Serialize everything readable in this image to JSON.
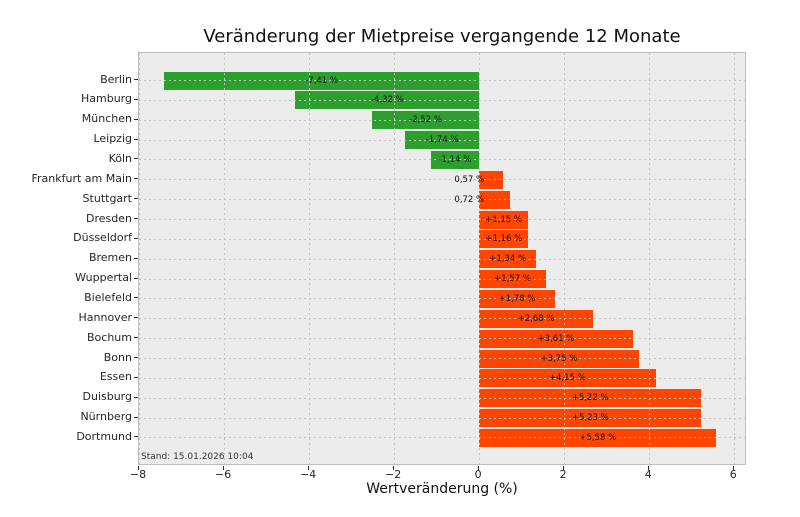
{
  "figure": {
    "title": "Veränderung der Mietpreise vergangende 12 Monate",
    "xlabel": "Wertveränderung (%)",
    "annotation": "Stand: 15.01.2026 10:04"
  },
  "colors": {
    "negative_bar": "#2ca02c",
    "positive_bar": "#ff4500",
    "plot_background": "#ececec",
    "grid": "#c4c4c4",
    "figure_background": "#ffffff"
  },
  "chart_data": {
    "type": "bar",
    "orientation": "horizontal",
    "title": "Veränderung der Mietpreise vergangende 12 Monate",
    "xlabel": "Wertveränderung (%)",
    "ylabel": "",
    "annotation": "Stand: 15.01.2026 10:04",
    "grid": true,
    "legend": false,
    "xlim": [
      -8.0,
      6.3
    ],
    "xticks": [
      -8,
      -6,
      -4,
      -2,
      0,
      2,
      4,
      6
    ],
    "xtick_labels": [
      "−8",
      "−6",
      "−4",
      "−2",
      "0",
      "2",
      "4",
      "6"
    ],
    "categories": [
      "Berlin",
      "Hamburg",
      "München",
      "Leipzig",
      "Köln",
      "Frankfurt am Main",
      "Stuttgart",
      "Dresden",
      "Düsseldorf",
      "Bremen",
      "Wuppertal",
      "Bielefeld",
      "Hannover",
      "Bochum",
      "Bonn",
      "Essen",
      "Duisburg",
      "Nürnberg",
      "Dortmund"
    ],
    "values": [
      -7.41,
      -4.32,
      -2.52,
      -1.74,
      -1.14,
      0.57,
      0.72,
      1.15,
      1.16,
      1.34,
      1.57,
      1.78,
      2.68,
      3.61,
      3.75,
      4.15,
      5.22,
      5.23,
      5.58
    ],
    "value_labels": [
      "-7,41 %",
      "-4,32 %",
      "-2,52 %",
      "-1,74 %",
      "-1,14 %",
      "0,57 %",
      "0,72 %",
      "+1,15 %",
      "+1,16 %",
      "+1,34 %",
      "+1,57 %",
      "+1,78 %",
      "+2,68 %",
      "+3,61 %",
      "+3,75 %",
      "+4,15 %",
      "+5,22 %",
      "+5,23 %",
      "+5,58 %"
    ]
  }
}
